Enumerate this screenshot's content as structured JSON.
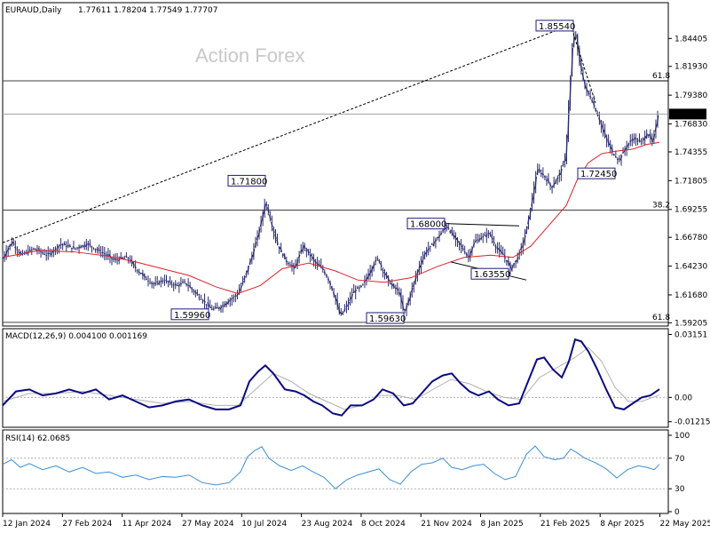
{
  "header": {
    "symbol": "EURAUD,Daily",
    "ohlc": "1.77611 1.78204 1.77549 1.77707"
  },
  "watermark": "Action Forex",
  "colors": {
    "candle": "#2b2b6e",
    "ma": "#e0202a",
    "macd": "#0a0a82",
    "macd_signal": "#b0b0b0",
    "rsi": "#3a8fd6",
    "grid": "#c8c8c8"
  },
  "chart_data": [
    {
      "type": "candlestick",
      "panel": "price",
      "title": "EURAUD,Daily",
      "ylim": [
        1.59,
        1.875
      ],
      "y_ticks": [
        "1.84405",
        "1.81930",
        "1.79380",
        "1.76830",
        "1.74355",
        "1.71805",
        "1.69255",
        "1.66780",
        "1.64230",
        "1.61680",
        "1.59205"
      ],
      "x_ticks": [
        "12 Jan 2024",
        "27 Feb 2024",
        "11 Apr 2024",
        "27 May 2024",
        "10 Jul 2024",
        "23 Aug 2024",
        "8 Oct 2024",
        "21 Nov 2024",
        "8 Jan 2025",
        "21 Feb 2025",
        "8 Apr 2025",
        "22 May 2025"
      ],
      "last_price": "1.77707",
      "price_path": [
        [
          0,
          1.65
        ],
        [
          10,
          1.664
        ],
        [
          20,
          1.652
        ],
        [
          35,
          1.658
        ],
        [
          50,
          1.652
        ],
        [
          65,
          1.662
        ],
        [
          80,
          1.658
        ],
        [
          95,
          1.662
        ],
        [
          110,
          1.655
        ],
        [
          125,
          1.648
        ],
        [
          140,
          1.65
        ],
        [
          150,
          1.64
        ],
        [
          160,
          1.632
        ],
        [
          170,
          1.626
        ],
        [
          180,
          1.63
        ],
        [
          195,
          1.625
        ],
        [
          205,
          1.628
        ],
        [
          215,
          1.62
        ],
        [
          225,
          1.612
        ],
        [
          235,
          1.604
        ],
        [
          245,
          1.606
        ],
        [
          255,
          1.612
        ],
        [
          265,
          1.618
        ],
        [
          272,
          1.632
        ],
        [
          280,
          1.65
        ],
        [
          288,
          1.672
        ],
        [
          296,
          1.7
        ],
        [
          303,
          1.678
        ],
        [
          310,
          1.66
        ],
        [
          318,
          1.648
        ],
        [
          328,
          1.64
        ],
        [
          338,
          1.66
        ],
        [
          346,
          1.652
        ],
        [
          352,
          1.645
        ],
        [
          360,
          1.64
        ],
        [
          368,
          1.628
        ],
        [
          375,
          1.612
        ],
        [
          380,
          1.598
        ],
        [
          388,
          1.608
        ],
        [
          395,
          1.62
        ],
        [
          405,
          1.625
        ],
        [
          415,
          1.64
        ],
        [
          422,
          1.65
        ],
        [
          430,
          1.635
        ],
        [
          438,
          1.625
        ],
        [
          446,
          1.62
        ],
        [
          452,
          1.6
        ],
        [
          460,
          1.62
        ],
        [
          468,
          1.64
        ],
        [
          476,
          1.655
        ],
        [
          484,
          1.662
        ],
        [
          492,
          1.67
        ],
        [
          500,
          1.678
        ],
        [
          508,
          1.668
        ],
        [
          516,
          1.66
        ],
        [
          524,
          1.65
        ],
        [
          532,
          1.665
        ],
        [
          540,
          1.668
        ],
        [
          548,
          1.672
        ],
        [
          556,
          1.658
        ],
        [
          564,
          1.652
        ],
        [
          572,
          1.64
        ],
        [
          580,
          1.65
        ],
        [
          588,
          1.668
        ],
        [
          596,
          1.7
        ],
        [
          602,
          1.728
        ],
        [
          610,
          1.722
        ],
        [
          618,
          1.712
        ],
        [
          626,
          1.722
        ],
        [
          634,
          1.738
        ],
        [
          638,
          1.79
        ],
        [
          642,
          1.84
        ],
        [
          645,
          1.85
        ],
        [
          650,
          1.822
        ],
        [
          656,
          1.8
        ],
        [
          662,
          1.792
        ],
        [
          670,
          1.776
        ],
        [
          678,
          1.758
        ],
        [
          686,
          1.744
        ],
        [
          694,
          1.736
        ],
        [
          702,
          1.748
        ],
        [
          710,
          1.756
        ],
        [
          718,
          1.752
        ],
        [
          726,
          1.76
        ],
        [
          732,
          1.752
        ],
        [
          738,
          1.776
        ],
        [
          740,
          1.777
        ]
      ],
      "ma_path": [
        [
          0,
          1.65
        ],
        [
          40,
          1.656
        ],
        [
          80,
          1.655
        ],
        [
          120,
          1.651
        ],
        [
          150,
          1.646
        ],
        [
          180,
          1.64
        ],
        [
          210,
          1.634
        ],
        [
          240,
          1.624
        ],
        [
          265,
          1.618
        ],
        [
          290,
          1.625
        ],
        [
          315,
          1.64
        ],
        [
          345,
          1.645
        ],
        [
          375,
          1.638
        ],
        [
          400,
          1.63
        ],
        [
          430,
          1.628
        ],
        [
          460,
          1.632
        ],
        [
          490,
          1.642
        ],
        [
          520,
          1.65
        ],
        [
          550,
          1.652
        ],
        [
          575,
          1.65
        ],
        [
          595,
          1.66
        ],
        [
          615,
          1.678
        ],
        [
          635,
          1.696
        ],
        [
          648,
          1.72
        ],
        [
          660,
          1.734
        ],
        [
          675,
          1.742
        ],
        [
          690,
          1.744
        ],
        [
          710,
          1.746
        ],
        [
          725,
          1.75
        ],
        [
          740,
          1.752
        ]
      ],
      "levels": [
        {
          "label": "61.8",
          "value": 1.8065
        },
        {
          "label": "38.2",
          "value": 1.692
        },
        {
          "label": "61.8",
          "value": 1.5925
        }
      ],
      "annotations": [
        {
          "label": "1.85540",
          "x": 643,
          "value": 1.8554
        },
        {
          "label": "1.71800",
          "x": 296,
          "value": 1.718
        },
        {
          "label": "1.68000",
          "x": 498,
          "value": 1.68
        },
        {
          "label": "1.72450",
          "x": 690,
          "value": 1.7245
        },
        {
          "label": "1.63550",
          "x": 570,
          "value": 1.6355
        },
        {
          "label": "1.59960",
          "x": 232,
          "value": 1.5996
        },
        {
          "label": "1.59630",
          "x": 452,
          "value": 1.5963
        }
      ]
    },
    {
      "type": "line",
      "panel": "macd",
      "title": "MACD(12,26,9) 0.004100 0.001169",
      "ylim": [
        -0.0145,
        0.0335
      ],
      "y_ticks": [
        "0.03151",
        "0.00",
        "-0.01215"
      ],
      "macd_path": [
        [
          0,
          -0.004
        ],
        [
          15,
          0.003
        ],
        [
          30,
          0.004
        ],
        [
          45,
          0.001
        ],
        [
          60,
          0.002
        ],
        [
          75,
          0.004
        ],
        [
          90,
          0.002
        ],
        [
          105,
          0.004
        ],
        [
          120,
          -0.001
        ],
        [
          135,
          0.001
        ],
        [
          150,
          -0.002
        ],
        [
          165,
          -0.005
        ],
        [
          180,
          -0.004
        ],
        [
          195,
          -0.002
        ],
        [
          210,
          -0.001
        ],
        [
          225,
          -0.004
        ],
        [
          240,
          -0.006
        ],
        [
          255,
          -0.006
        ],
        [
          268,
          -0.004
        ],
        [
          278,
          0.008
        ],
        [
          288,
          0.013
        ],
        [
          296,
          0.016
        ],
        [
          305,
          0.012
        ],
        [
          318,
          0.004
        ],
        [
          330,
          0.003
        ],
        [
          340,
          0.001
        ],
        [
          350,
          -0.002
        ],
        [
          360,
          -0.004
        ],
        [
          372,
          -0.008
        ],
        [
          382,
          -0.009
        ],
        [
          392,
          -0.004
        ],
        [
          405,
          -0.004
        ],
        [
          418,
          -0.001
        ],
        [
          428,
          0.004
        ],
        [
          440,
          0.002
        ],
        [
          452,
          -0.004
        ],
        [
          462,
          -0.003
        ],
        [
          474,
          0.003
        ],
        [
          484,
          0.008
        ],
        [
          496,
          0.011
        ],
        [
          506,
          0.012
        ],
        [
          516,
          0.007
        ],
        [
          526,
          0.003
        ],
        [
          536,
          0.001
        ],
        [
          548,
          0.003
        ],
        [
          558,
          -0.001
        ],
        [
          570,
          -0.004
        ],
        [
          582,
          -0.003
        ],
        [
          592,
          0.008
        ],
        [
          602,
          0.019
        ],
        [
          610,
          0.02
        ],
        [
          620,
          0.014
        ],
        [
          630,
          0.01
        ],
        [
          638,
          0.018
        ],
        [
          645,
          0.029
        ],
        [
          652,
          0.028
        ],
        [
          660,
          0.023
        ],
        [
          670,
          0.014
        ],
        [
          680,
          0.004
        ],
        [
          690,
          -0.005
        ],
        [
          700,
          -0.006
        ],
        [
          710,
          -0.003
        ],
        [
          720,
          0.0
        ],
        [
          730,
          0.001
        ],
        [
          740,
          0.0041
        ]
      ],
      "signal_path": [
        [
          0,
          -0.002
        ],
        [
          30,
          0.002
        ],
        [
          60,
          0.002
        ],
        [
          90,
          0.003
        ],
        [
          120,
          0.001
        ],
        [
          150,
          -0.001
        ],
        [
          180,
          -0.003
        ],
        [
          210,
          -0.002
        ],
        [
          240,
          -0.004
        ],
        [
          265,
          -0.004
        ],
        [
          285,
          0.004
        ],
        [
          305,
          0.012
        ],
        [
          325,
          0.008
        ],
        [
          345,
          0.002
        ],
        [
          365,
          -0.002
        ],
        [
          385,
          -0.006
        ],
        [
          405,
          -0.004
        ],
        [
          425,
          0.001
        ],
        [
          445,
          0.001
        ],
        [
          465,
          -0.001
        ],
        [
          485,
          0.004
        ],
        [
          505,
          0.009
        ],
        [
          525,
          0.007
        ],
        [
          545,
          0.003
        ],
        [
          565,
          0.0
        ],
        [
          585,
          -0.001
        ],
        [
          605,
          0.01
        ],
        [
          625,
          0.015
        ],
        [
          645,
          0.02
        ],
        [
          660,
          0.025
        ],
        [
          675,
          0.018
        ],
        [
          690,
          0.005
        ],
        [
          705,
          -0.002
        ],
        [
          720,
          -0.002
        ],
        [
          740,
          0.0012
        ]
      ]
    },
    {
      "type": "line",
      "panel": "rsi",
      "title": "RSI(14) 62.0685",
      "ylim": [
        0,
        100
      ],
      "y_ticks": [
        "100",
        "70",
        "30",
        "0"
      ],
      "levels": [
        70,
        30
      ],
      "rsi_path": [
        [
          0,
          62
        ],
        [
          10,
          68
        ],
        [
          20,
          58
        ],
        [
          30,
          63
        ],
        [
          45,
          55
        ],
        [
          60,
          60
        ],
        [
          75,
          52
        ],
        [
          90,
          58
        ],
        [
          105,
          50
        ],
        [
          120,
          52
        ],
        [
          135,
          45
        ],
        [
          150,
          48
        ],
        [
          165,
          42
        ],
        [
          180,
          46
        ],
        [
          195,
          45
        ],
        [
          210,
          48
        ],
        [
          225,
          38
        ],
        [
          240,
          35
        ],
        [
          255,
          38
        ],
        [
          268,
          52
        ],
        [
          276,
          72
        ],
        [
          284,
          80
        ],
        [
          292,
          85
        ],
        [
          300,
          70
        ],
        [
          312,
          60
        ],
        [
          325,
          54
        ],
        [
          338,
          60
        ],
        [
          350,
          52
        ],
        [
          362,
          45
        ],
        [
          375,
          30
        ],
        [
          388,
          42
        ],
        [
          400,
          48
        ],
        [
          412,
          52
        ],
        [
          424,
          56
        ],
        [
          436,
          42
        ],
        [
          448,
          36
        ],
        [
          460,
          52
        ],
        [
          472,
          62
        ],
        [
          484,
          64
        ],
        [
          496,
          70
        ],
        [
          506,
          58
        ],
        [
          518,
          55
        ],
        [
          530,
          60
        ],
        [
          542,
          62
        ],
        [
          554,
          50
        ],
        [
          566,
          42
        ],
        [
          578,
          46
        ],
        [
          590,
          75
        ],
        [
          600,
          86
        ],
        [
          610,
          72
        ],
        [
          622,
          68
        ],
        [
          632,
          70
        ],
        [
          640,
          82
        ],
        [
          646,
          78
        ],
        [
          656,
          70
        ],
        [
          668,
          64
        ],
        [
          680,
          56
        ],
        [
          692,
          44
        ],
        [
          704,
          55
        ],
        [
          716,
          60
        ],
        [
          726,
          58
        ],
        [
          734,
          55
        ],
        [
          740,
          62
        ]
      ]
    }
  ]
}
